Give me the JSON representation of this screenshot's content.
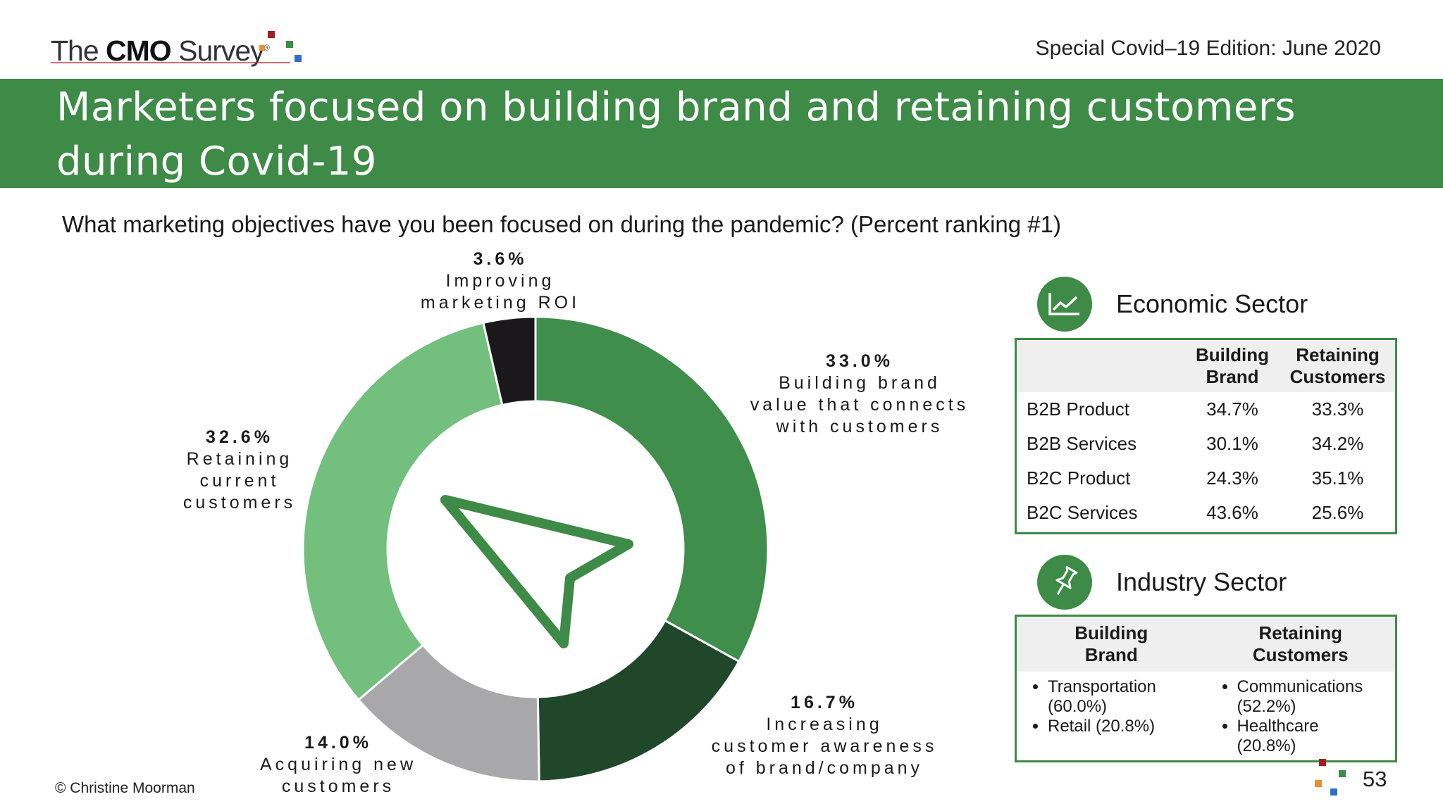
{
  "header": {
    "logo_prefix": "The ",
    "logo_bold": "CMO",
    "logo_suffix": " Survey",
    "logo_reg": "®",
    "edition": "Special Covid–19 Edition: June 2020"
  },
  "title": "Marketers focused on building brand and retaining customers during Covid-19",
  "question": "What marketing objectives have you been focused on during the pandemic? (Percent ranking #1)",
  "chart_data": {
    "type": "pie",
    "style": "donut",
    "categories": [
      "Building brand value that connects with customers",
      "Increasing customer awareness of brand/company",
      "Acquiring new customers",
      "Retaining current customers",
      "Improving marketing ROI"
    ],
    "values": [
      33.0,
      16.7,
      14.0,
      32.6,
      3.6
    ],
    "colors": [
      "#3f8e4b",
      "#21472a",
      "#a8a7aa",
      "#72bf7e",
      "#1b181c"
    ],
    "labels": [
      {
        "pct": "33.0%",
        "lines": [
          "Building brand",
          "value that connects",
          "with customers"
        ]
      },
      {
        "pct": "16.7%",
        "lines": [
          "Increasing",
          "customer awareness",
          "of brand/company"
        ]
      },
      {
        "pct": "14.0%",
        "lines": [
          "Acquiring new",
          "customers"
        ]
      },
      {
        "pct": "32.6%",
        "lines": [
          "Retaining",
          "current",
          "customers"
        ]
      },
      {
        "pct": "3.6%",
        "lines": [
          "Improving",
          "marketing ROI"
        ]
      }
    ],
    "center_icon": "navigation-arrow-icon"
  },
  "economic": {
    "title": "Economic Sector",
    "icon": "line-chart-icon",
    "columns": [
      "Building Brand",
      "Retaining Customers"
    ],
    "rows": [
      {
        "label": "B2B Product",
        "values": [
          "34.7%",
          "33.3%"
        ]
      },
      {
        "label": "B2B Services",
        "values": [
          "30.1%",
          "34.2%"
        ]
      },
      {
        "label": "B2C Product",
        "values": [
          "24.3%",
          "35.1%"
        ]
      },
      {
        "label": "B2C Services",
        "values": [
          "43.6%",
          "25.6%"
        ]
      }
    ]
  },
  "industry": {
    "title": "Industry Sector",
    "icon": "pushpin-icon",
    "columns": [
      "Building Brand",
      "Retaining Customers"
    ],
    "building": [
      "Transportation (60.0%)",
      "Retail (20.8%)"
    ],
    "retaining": [
      "Communications (52.2%)",
      "Healthcare (20.8%)"
    ]
  },
  "footer": {
    "copyright": "© Christine Moorman",
    "page": "53"
  },
  "brand_colors": {
    "green": "#3d8b46",
    "red": "#b22222",
    "orange": "#e8902e",
    "blue": "#2e6fbf"
  }
}
